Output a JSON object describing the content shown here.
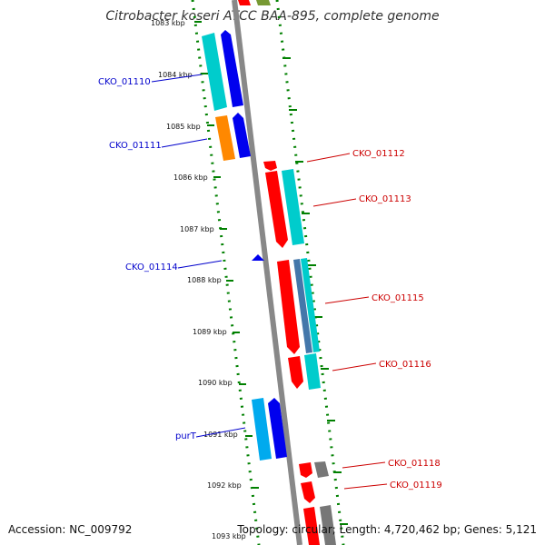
{
  "title": "Citrobacter koseri ATCC BAA-895, complete genome",
  "accession_text": "Accession: NC_009792",
  "summary_text": "Topology: circular; Length: 4,720,462 bp; Genes: 5,121",
  "colors": {
    "backbone": "#888888",
    "tick": "#008000",
    "forward_label": "#cc0000",
    "reverse_label": "#0000cc",
    "red": "#ff0000",
    "blue": "#0000ee",
    "cyan": "#00cccc",
    "orange": "#ff8800",
    "gray": "#777777",
    "skyblue": "#00aaee",
    "steel": "#4477aa",
    "olive": "#779933"
  },
  "ruler": {
    "partial_top_label": "1083 kbp",
    "ticks": [
      {
        "label": "1084 kbp"
      },
      {
        "label": "1085 kbp"
      },
      {
        "label": "1086 kbp"
      },
      {
        "label": "1087 kbp"
      },
      {
        "label": "1088 kbp"
      },
      {
        "label": "1089 kbp"
      },
      {
        "label": "1090 kbp"
      },
      {
        "label": "1091 kbp"
      },
      {
        "label": "1092 kbp"
      },
      {
        "label": "1093 kbp"
      }
    ]
  },
  "gene_labels": [
    {
      "text": "CKO_01110",
      "strand": "reverse"
    },
    {
      "text": "CKO_01111",
      "strand": "reverse"
    },
    {
      "text": "CKO_01112",
      "strand": "forward"
    },
    {
      "text": "CKO_01113",
      "strand": "forward"
    },
    {
      "text": "CKO_01114",
      "strand": "reverse"
    },
    {
      "text": "CKO_01115",
      "strand": "forward"
    },
    {
      "text": "CKO_01116",
      "strand": "forward"
    },
    {
      "text": "purT",
      "strand": "reverse"
    },
    {
      "text": "CKO_01118",
      "strand": "forward"
    },
    {
      "text": "CKO_01119",
      "strand": "forward"
    }
  ]
}
